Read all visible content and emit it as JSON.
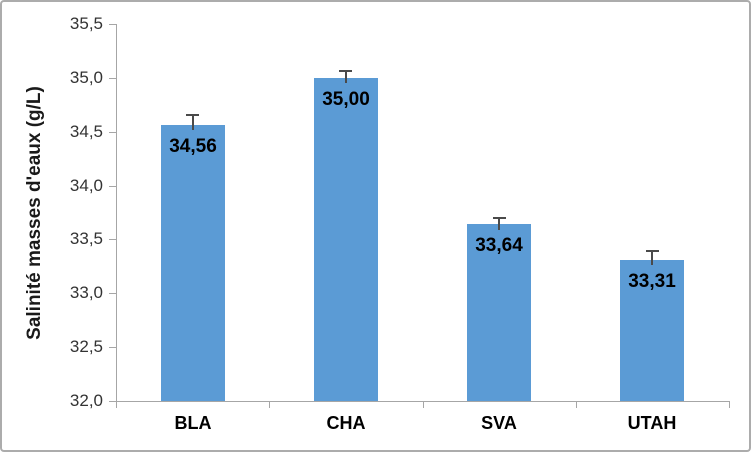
{
  "chart_data": {
    "type": "bar",
    "title": "",
    "ylabel": "Salinité masses d'eaux (g/L)",
    "xlabel": "",
    "ylim": [
      32.0,
      35.5
    ],
    "ytick_step": 0.5,
    "ytick_labels": [
      "32,0",
      "32,5",
      "33,0",
      "33,5",
      "34,0",
      "34,5",
      "35,0",
      "35,5"
    ],
    "ytick_values": [
      32.0,
      32.5,
      33.0,
      33.5,
      34.0,
      34.5,
      35.0,
      35.5
    ],
    "categories": [
      "BLA",
      "CHA",
      "SVA",
      "UTAH"
    ],
    "values": [
      34.56,
      35.0,
      33.64,
      33.31
    ],
    "value_labels": [
      "34,56",
      "35,00",
      "33,64",
      "33,31"
    ],
    "errors_estimated": [
      0.1,
      0.07,
      0.07,
      0.09
    ],
    "decimal_separator": ",",
    "grid": false,
    "legend": false,
    "colors": {
      "bar": "#5b9bd5",
      "axis": "#a6a6a6",
      "error_bar": "#4a4a4a",
      "value_label": "#000000",
      "tick_label": "#333333",
      "frame_border": "#acacac",
      "background": "#ffffff"
    }
  }
}
